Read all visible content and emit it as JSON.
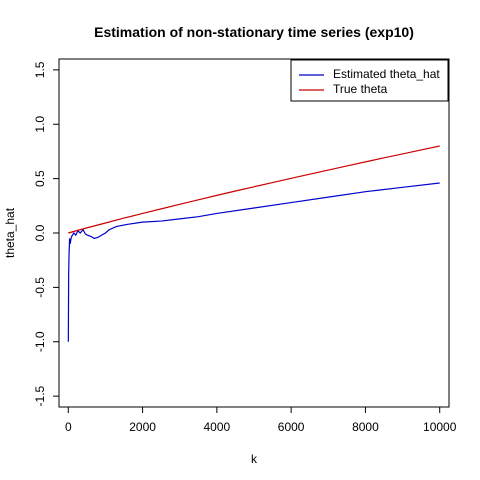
{
  "chart_data": {
    "type": "line",
    "title": "Estimation of non-stationary time series (exp10)",
    "xlabel": "k",
    "ylabel": "theta_hat",
    "xlim": [
      -250,
      10250
    ],
    "ylim": [
      -1.6,
      1.6
    ],
    "x_ticks": [
      0,
      2000,
      4000,
      6000,
      8000,
      10000
    ],
    "x_tick_labels": [
      "0",
      "2000",
      "4000",
      "6000",
      "8000",
      "10000"
    ],
    "y_ticks": [
      -1.5,
      -1.0,
      -0.5,
      0.0,
      0.5,
      1.0,
      1.5
    ],
    "y_tick_labels": [
      "-1.5",
      "-1.0",
      "-0.5",
      "0.0",
      "0.5",
      "1.0",
      "1.5"
    ],
    "grid": false,
    "legend_position": "top-right",
    "series": [
      {
        "name": "Estimated theta_hat",
        "color": "#0000cc",
        "x": [
          1,
          10,
          20,
          35,
          50,
          80,
          110,
          150,
          200,
          260,
          320,
          400,
          460,
          520,
          600,
          700,
          800,
          900,
          1000,
          1100,
          1300,
          1600,
          2000,
          2500,
          3000,
          3500,
          4000,
          5000,
          6000,
          7000,
          8000,
          9000,
          10000
        ],
        "y": [
          -1.0,
          -0.38,
          -0.2,
          -0.05,
          -0.1,
          -0.04,
          -0.02,
          0.0,
          -0.02,
          0.02,
          0.0,
          0.03,
          -0.01,
          -0.02,
          -0.03,
          -0.05,
          -0.04,
          -0.02,
          0.0,
          0.03,
          0.06,
          0.08,
          0.1,
          0.11,
          0.13,
          0.15,
          0.18,
          0.23,
          0.28,
          0.33,
          0.38,
          0.42,
          0.46
        ]
      },
      {
        "name": "True theta",
        "color": "#cc0000",
        "x": [
          0,
          500,
          1000,
          1500,
          2000,
          2500,
          3000,
          3500,
          4000,
          4500,
          5000,
          5500,
          6000,
          6500,
          7000,
          7500,
          8000,
          8500,
          9000,
          9500,
          10000
        ],
        "y": [
          0.0,
          0.047,
          0.092,
          0.137,
          0.18,
          0.222,
          0.264,
          0.305,
          0.346,
          0.386,
          0.425,
          0.464,
          0.503,
          0.541,
          0.579,
          0.617,
          0.654,
          0.691,
          0.727,
          0.764,
          0.8
        ]
      }
    ]
  }
}
